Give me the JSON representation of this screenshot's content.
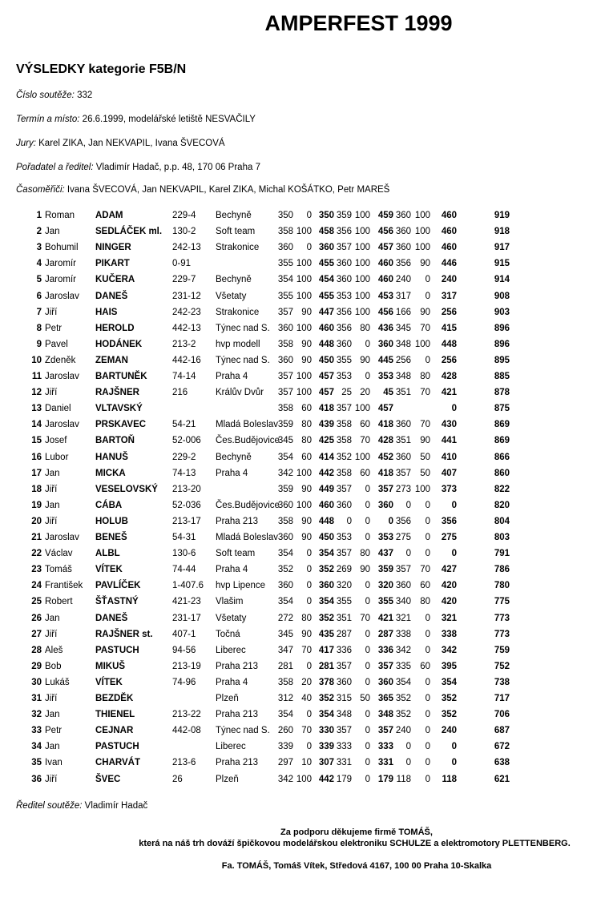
{
  "title": "AMPERFEST 1999",
  "subtitle": "VÝSLEDKY kategorie F5B/N",
  "info": [
    {
      "label": "Číslo soutěže:",
      "value": "332"
    },
    {
      "label": "Termín a místo:",
      "value": "26.6.1999, modelářské letiště NESVAČILY"
    },
    {
      "label": "Jury:",
      "value": "Karel ZIKA, Jan NEKVAPIL, Ivana ŠVECOVÁ"
    },
    {
      "label": "Pořadatel a ředitel:",
      "value": "Vladimír Hadač, p.p. 48, 170 06 Praha 7"
    },
    {
      "label": "Časoměřiči:",
      "value": "Ivana ŠVECOVÁ, Jan NEKVAPIL, Karel ZIKA, Michal KOŠÁTKO, Petr MAREŠ"
    }
  ],
  "results": [
    [
      "1",
      "Roman",
      "ADAM",
      "229-4",
      "Bechyně",
      "350",
      "0",
      "350",
      "359",
      "100",
      "459",
      "360",
      "100",
      "460",
      "919"
    ],
    [
      "2",
      "Jan",
      "SEDLÁČEK ml.",
      "130-2",
      "Soft team",
      "358",
      "100",
      "458",
      "356",
      "100",
      "456",
      "360",
      "100",
      "460",
      "918"
    ],
    [
      "3",
      "Bohumil",
      "NINGER",
      "242-13",
      "Strakonice",
      "360",
      "0",
      "360",
      "357",
      "100",
      "457",
      "360",
      "100",
      "460",
      "917"
    ],
    [
      "4",
      "Jaromír",
      "PIKART",
      "0-91",
      "",
      "355",
      "100",
      "455",
      "360",
      "100",
      "460",
      "356",
      "90",
      "446",
      "915"
    ],
    [
      "5",
      "Jaromír",
      "KUČERA",
      "229-7",
      "Bechyně",
      "354",
      "100",
      "454",
      "360",
      "100",
      "460",
      "240",
      "0",
      "240",
      "914"
    ],
    [
      "6",
      "Jaroslav",
      "DANEŠ",
      "231-12",
      "Všetaty",
      "355",
      "100",
      "455",
      "353",
      "100",
      "453",
      "317",
      "0",
      "317",
      "908"
    ],
    [
      "7",
      "Jiří",
      "HAIS",
      "242-23",
      "Strakonice",
      "357",
      "90",
      "447",
      "356",
      "100",
      "456",
      "166",
      "90",
      "256",
      "903"
    ],
    [
      "8",
      "Petr",
      "HEROLD",
      "442-13",
      "Týnec nad S.",
      "360",
      "100",
      "460",
      "356",
      "80",
      "436",
      "345",
      "70",
      "415",
      "896"
    ],
    [
      "9",
      "Pavel",
      "HODÁNEK",
      "213-2",
      "hvp modell",
      "358",
      "90",
      "448",
      "360",
      "0",
      "360",
      "348",
      "100",
      "448",
      "896"
    ],
    [
      "10",
      "Zdeněk",
      "ZEMAN",
      "442-16",
      "Týnec nad S.",
      "360",
      "90",
      "450",
      "355",
      "90",
      "445",
      "256",
      "0",
      "256",
      "895"
    ],
    [
      "11",
      "Jaroslav",
      "BARTUNĚK",
      "74-14",
      "Praha 4",
      "357",
      "100",
      "457",
      "353",
      "0",
      "353",
      "348",
      "80",
      "428",
      "885"
    ],
    [
      "12",
      "Jiří",
      "RAJŠNER",
      "216",
      "Králův Dvůr",
      "357",
      "100",
      "457",
      "25",
      "20",
      "45",
      "351",
      "70",
      "421",
      "878"
    ],
    [
      "13",
      "Daniel",
      "VLTAVSKÝ",
      "",
      "",
      "358",
      "60",
      "418",
      "357",
      "100",
      "457",
      "",
      "",
      "0",
      "875"
    ],
    [
      "14",
      "Jaroslav",
      "PRSKAVEC",
      "54-21",
      "Mladá Boleslav",
      "359",
      "80",
      "439",
      "358",
      "60",
      "418",
      "360",
      "70",
      "430",
      "869"
    ],
    [
      "15",
      "Josef",
      "BARTOŇ",
      "52-006",
      "Čes.Budějovice",
      "345",
      "80",
      "425",
      "358",
      "70",
      "428",
      "351",
      "90",
      "441",
      "869"
    ],
    [
      "16",
      "Lubor",
      "HANUŠ",
      "229-2",
      "Bechyně",
      "354",
      "60",
      "414",
      "352",
      "100",
      "452",
      "360",
      "50",
      "410",
      "866"
    ],
    [
      "17",
      "Jan",
      "MICKA",
      "74-13",
      "Praha 4",
      "342",
      "100",
      "442",
      "358",
      "60",
      "418",
      "357",
      "50",
      "407",
      "860"
    ],
    [
      "18",
      "Jiří",
      "VESELOVSKÝ",
      "213-20",
      "",
      "359",
      "90",
      "449",
      "357",
      "0",
      "357",
      "273",
      "100",
      "373",
      "822"
    ],
    [
      "19",
      "Jan",
      "CÁBA",
      "52-036",
      "Čes.Budějovice",
      "360",
      "100",
      "460",
      "360",
      "0",
      "360",
      "0",
      "0",
      "0",
      "820"
    ],
    [
      "20",
      "Jiří",
      "HOLUB",
      "213-17",
      "Praha 213",
      "358",
      "90",
      "448",
      "0",
      "0",
      "0",
      "356",
      "0",
      "356",
      "804"
    ],
    [
      "21",
      "Jaroslav",
      "BENEŠ",
      "54-31",
      "Mladá Boleslav",
      "360",
      "90",
      "450",
      "353",
      "0",
      "353",
      "275",
      "0",
      "275",
      "803"
    ],
    [
      "22",
      "Václav",
      "ALBL",
      "130-6",
      "Soft team",
      "354",
      "0",
      "354",
      "357",
      "80",
      "437",
      "0",
      "0",
      "0",
      "791"
    ],
    [
      "23",
      "Tomáš",
      "VÍTEK",
      "74-44",
      "Praha 4",
      "352",
      "0",
      "352",
      "269",
      "90",
      "359",
      "357",
      "70",
      "427",
      "786"
    ],
    [
      "24",
      "František",
      "PAVLÍČEK",
      "1-407.6",
      "hvp Lipence",
      "360",
      "0",
      "360",
      "320",
      "0",
      "320",
      "360",
      "60",
      "420",
      "780"
    ],
    [
      "25",
      "Robert",
      "ŠŤASTNÝ",
      "421-23",
      "Vlašim",
      "354",
      "0",
      "354",
      "355",
      "0",
      "355",
      "340",
      "80",
      "420",
      "775"
    ],
    [
      "26",
      "Jan",
      "DANEŠ",
      "231-17",
      "Všetaty",
      "272",
      "80",
      "352",
      "351",
      "70",
      "421",
      "321",
      "0",
      "321",
      "773"
    ],
    [
      "27",
      "Jiří",
      "RAJŠNER st.",
      "407-1",
      "Točná",
      "345",
      "90",
      "435",
      "287",
      "0",
      "287",
      "338",
      "0",
      "338",
      "773"
    ],
    [
      "28",
      "Aleš",
      "PASTUCH",
      "94-56",
      "Liberec",
      "347",
      "70",
      "417",
      "336",
      "0",
      "336",
      "342",
      "0",
      "342",
      "759"
    ],
    [
      "29",
      "Bob",
      "MIKUŠ",
      "213-19",
      "Praha 213",
      "281",
      "0",
      "281",
      "357",
      "0",
      "357",
      "335",
      "60",
      "395",
      "752"
    ],
    [
      "30",
      "Lukáš",
      "VÍTEK",
      "74-96",
      "Praha 4",
      "358",
      "20",
      "378",
      "360",
      "0",
      "360",
      "354",
      "0",
      "354",
      "738"
    ],
    [
      "31",
      "Jiří",
      "BEZDĚK",
      "",
      "Plzeň",
      "312",
      "40",
      "352",
      "315",
      "50",
      "365",
      "352",
      "0",
      "352",
      "717"
    ],
    [
      "32",
      "Jan",
      "THIENEL",
      "213-22",
      "Praha 213",
      "354",
      "0",
      "354",
      "348",
      "0",
      "348",
      "352",
      "0",
      "352",
      "706"
    ],
    [
      "33",
      "Petr",
      "CEJNAR",
      "442-08",
      "Týnec nad S.",
      "260",
      "70",
      "330",
      "357",
      "0",
      "357",
      "240",
      "0",
      "240",
      "687"
    ],
    [
      "34",
      "Jan",
      "PASTUCH",
      "",
      "Liberec",
      "339",
      "0",
      "339",
      "333",
      "0",
      "333",
      "0",
      "0",
      "0",
      "672"
    ],
    [
      "35",
      "Ivan",
      "CHARVÁT",
      "213-6",
      "Praha 213",
      "297",
      "10",
      "307",
      "331",
      "0",
      "331",
      "0",
      "0",
      "0",
      "638"
    ],
    [
      "36",
      "Jiří",
      "ŠVEC",
      "26",
      "Plzeň",
      "342",
      "100",
      "442",
      "179",
      "0",
      "179",
      "118",
      "0",
      "118",
      "621"
    ]
  ],
  "director": {
    "label": "Ředitel soutěže:",
    "value": "Vladimír Hadač"
  },
  "sponsor": [
    "Za podporu děkujeme firmě TOMÁŠ,",
    "která na náš trh dováží špičkovou modelářskou elektroniku SCHULZE a elektromotory PLETTENBERG.",
    "Fa. TOMÁŠ, Tomáš Vítek, Středová 4167, 100 00 Praha 10-Skalka"
  ]
}
